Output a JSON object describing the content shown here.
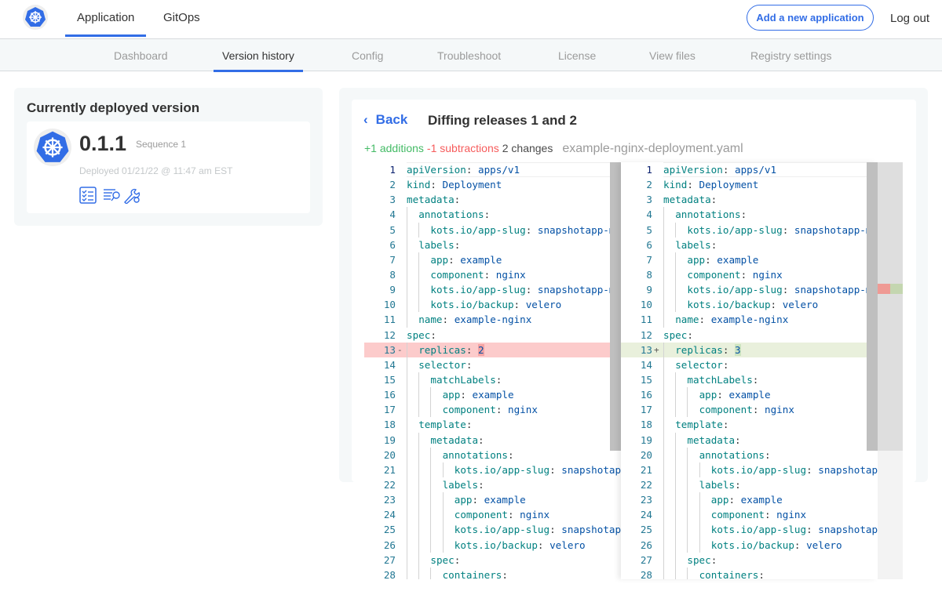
{
  "header": {
    "tabs": [
      {
        "label": "Application",
        "active": true
      },
      {
        "label": "GitOps",
        "active": false
      }
    ],
    "add_button": "Add a new application",
    "logout": "Log out",
    "logo_icon": "kubernetes-helm-icon"
  },
  "subnav": {
    "items": [
      "Dashboard",
      "Version history",
      "Config",
      "Troubleshoot",
      "License",
      "View files",
      "Registry settings"
    ],
    "active": "Version history"
  },
  "deployed": {
    "title": "Currently deployed version",
    "version": "0.1.1",
    "sequence": "Sequence 1",
    "deployed_at": "Deployed 01/21/22 @ 11:47 am EST",
    "icons": [
      "checklist-icon",
      "logs-search-icon",
      "wrench-gear-icon"
    ]
  },
  "diff": {
    "back": "Back",
    "title": "Diffing releases 1 and 2",
    "additions": "+1 additions",
    "subtractions": "-1 subtractions",
    "changes": "2 changes",
    "file": "example-nginx-deployment.yaml"
  },
  "colors": {
    "accent": "#326de6",
    "addition": "#44bb66",
    "subtraction": "#f65c5c"
  },
  "left_lines": [
    "apiVersion: apps/v1",
    "kind: Deployment",
    "metadata:",
    "  annotations:",
    "    kots.io/app-slug: snapshotapp-mu",
    "  labels:",
    "    app: example",
    "    component: nginx",
    "    kots.io/app-slug: snapshotapp-mu",
    "    kots.io/backup: velero",
    "  name: example-nginx",
    "spec:",
    "  replicas: 2",
    "  selector:",
    "    matchLabels:",
    "      app: example",
    "      component: nginx",
    "  template:",
    "    metadata:",
    "      annotations:",
    "        kots.io/app-slug: snapshotap",
    "      labels:",
    "        app: example",
    "        component: nginx",
    "        kots.io/app-slug: snapshotap",
    "        kots.io/backup: velero",
    "    spec:",
    "      containers:"
  ],
  "right_lines": [
    "apiVersion: apps/v1",
    "kind: Deployment",
    "metadata:",
    "  annotations:",
    "    kots.io/app-slug: snapshotapp-mu",
    "  labels:",
    "    app: example",
    "    component: nginx",
    "    kots.io/app-slug: snapshotapp-mu",
    "    kots.io/backup: velero",
    "  name: example-nginx",
    "spec:",
    "  replicas: 3",
    "  selector:",
    "    matchLabels:",
    "      app: example",
    "      component: nginx",
    "  template:",
    "    metadata:",
    "      annotations:",
    "        kots.io/app-slug: snapshotap",
    "      labels:",
    "        app: example",
    "        component: nginx",
    "        kots.io/app-slug: snapshotap",
    "        kots.io/backup: velero",
    "    spec:",
    "      containers:"
  ],
  "changed_line": 13,
  "left_marker": "-",
  "right_marker": "+"
}
